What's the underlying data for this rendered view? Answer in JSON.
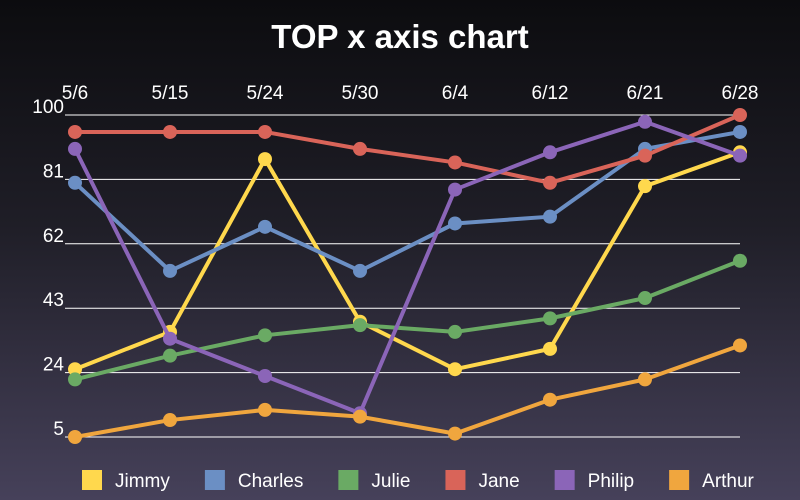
{
  "chart_data": {
    "type": "line",
    "title": "TOP x axis chart",
    "xlabel": "",
    "ylabel": "",
    "x_axis_position": "top",
    "categories": [
      "5/6",
      "5/15",
      "5/24",
      "5/30",
      "6/4",
      "6/12",
      "6/21",
      "6/28"
    ],
    "ylim": [
      5,
      100
    ],
    "yticks": [
      5,
      24,
      43,
      62,
      81,
      100
    ],
    "grid": "horizontal",
    "legend_position": "bottom",
    "series": [
      {
        "name": "Jimmy",
        "color": "#ffd84d",
        "values": [
          25,
          36,
          87,
          39,
          25,
          31,
          79,
          89
        ]
      },
      {
        "name": "Charles",
        "color": "#6b8fc4",
        "values": [
          80,
          54,
          67,
          54,
          68,
          70,
          90,
          95
        ]
      },
      {
        "name": "Julie",
        "color": "#6aaa64",
        "values": [
          22,
          29,
          35,
          38,
          36,
          40,
          46,
          57
        ]
      },
      {
        "name": "Jane",
        "color": "#d96459",
        "values": [
          95,
          95,
          95,
          90,
          86,
          80,
          88,
          100
        ]
      },
      {
        "name": "Philip",
        "color": "#8b65b8",
        "values": [
          90,
          34,
          23,
          12,
          78,
          89,
          98,
          88
        ]
      },
      {
        "name": "Arthur",
        "color": "#f0a63e",
        "values": [
          5,
          10,
          13,
          11,
          6,
          16,
          22,
          32
        ]
      }
    ]
  }
}
